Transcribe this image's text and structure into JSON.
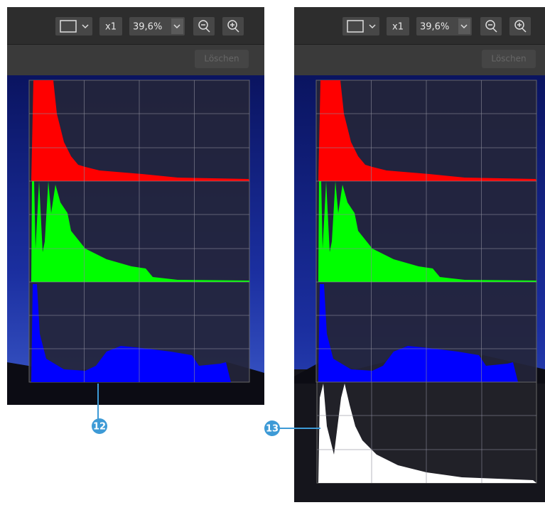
{
  "panels": [
    {
      "zoom_factor": "x1",
      "zoom": "39,6%",
      "clear_button": "Löschen"
    },
    {
      "zoom_factor": "x1",
      "zoom": "39,6%",
      "clear_button": "Löschen"
    }
  ],
  "callouts": [
    "12",
    "13"
  ]
}
